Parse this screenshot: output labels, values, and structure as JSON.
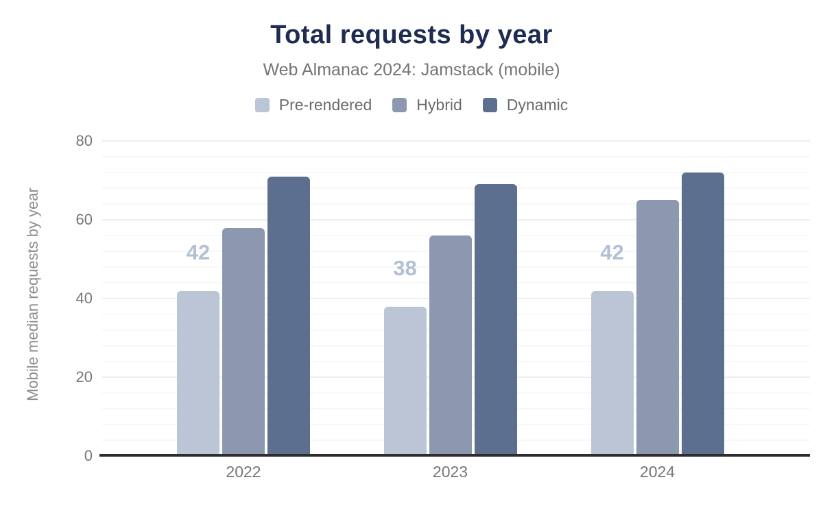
{
  "header": {
    "title": "Total requests by year",
    "subtitle": "Web Almanac 2024: Jamstack (mobile)"
  },
  "legend": [
    {
      "label": "Pre-rendered",
      "color": "#bbc5d5"
    },
    {
      "label": "Hybrid",
      "color": "#8b98b0"
    },
    {
      "label": "Dynamic",
      "color": "#5d6f8e"
    }
  ],
  "chart_data": {
    "type": "bar",
    "title": "Total requests by year",
    "subtitle": "Web Almanac 2024: Jamstack (mobile)",
    "categories": [
      "2022",
      "2023",
      "2024"
    ],
    "series": [
      {
        "name": "Pre-rendered",
        "color": "#bbc5d5",
        "values": [
          42,
          38,
          42
        ],
        "data_labels": [
          "42",
          "38",
          "42"
        ]
      },
      {
        "name": "Hybrid",
        "color": "#8b98b0",
        "values": [
          58,
          56,
          65
        ]
      },
      {
        "name": "Dynamic",
        "color": "#5d6f8e",
        "values": [
          71,
          69,
          72
        ]
      }
    ],
    "xlabel": "",
    "ylabel": "Mobile median requests by year",
    "ylim": [
      0,
      80
    ],
    "yticks": [
      0,
      20,
      40,
      60,
      80
    ],
    "minor_grid_step": 4,
    "grid": "horizontal major + faint minor lines, no vertical grid",
    "legend_position": "top center",
    "data_label_color": "#b3bfd4",
    "axis_line_color": "#2d2d2d",
    "tick_label_color": "#757575",
    "title_color": "#1e2b52",
    "subtitle_color": "#757575"
  }
}
